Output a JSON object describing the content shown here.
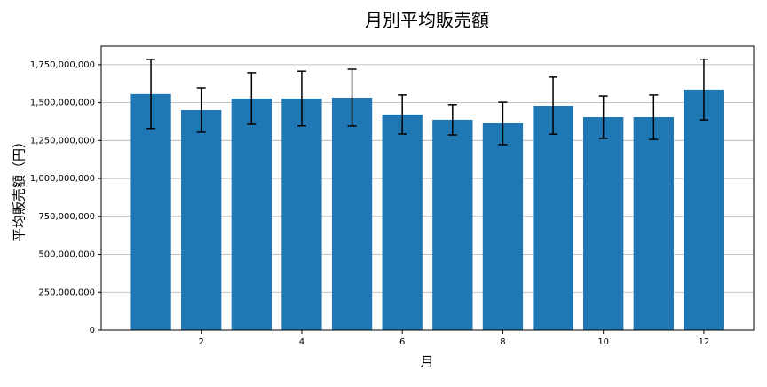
{
  "chart_data": {
    "type": "bar",
    "title": "月別平均販売額",
    "xlabel": "月",
    "ylabel": "平均販売額（円）",
    "x": [
      1,
      2,
      3,
      4,
      5,
      6,
      7,
      8,
      9,
      10,
      11,
      12
    ],
    "values": [
      1557000000,
      1451000000,
      1527000000,
      1527000000,
      1533000000,
      1422000000,
      1387000000,
      1363000000,
      1480000000,
      1404000000,
      1404000000,
      1586000000
    ],
    "errors": [
      228000000,
      146000000,
      170000000,
      180000000,
      187000000,
      129000000,
      100000000,
      140000000,
      188000000,
      140000000,
      147000000,
      200000000
    ],
    "color": "#1f77b4",
    "error_color": "#000000",
    "xlim": [
      0.01,
      12.99
    ],
    "xticks": [
      2,
      4,
      6,
      8,
      10,
      12
    ],
    "ylim": [
      0,
      1872000000
    ],
    "yticks": [
      0,
      {
        "value": 250000000,
        "label": "250,000,000"
      },
      {
        "value": 500000000,
        "label": "500,000,000"
      },
      {
        "value": 750000000,
        "label": "750,000,000"
      },
      {
        "value": 1000000000,
        "label": "1,000,000,000"
      },
      {
        "value": 1250000000,
        "label": "1,250,000,000"
      },
      {
        "value": 1500000000,
        "label": "1,500,000,000"
      },
      {
        "value": 1750000000,
        "label": "1,750,000,000"
      }
    ],
    "grid": true
  }
}
